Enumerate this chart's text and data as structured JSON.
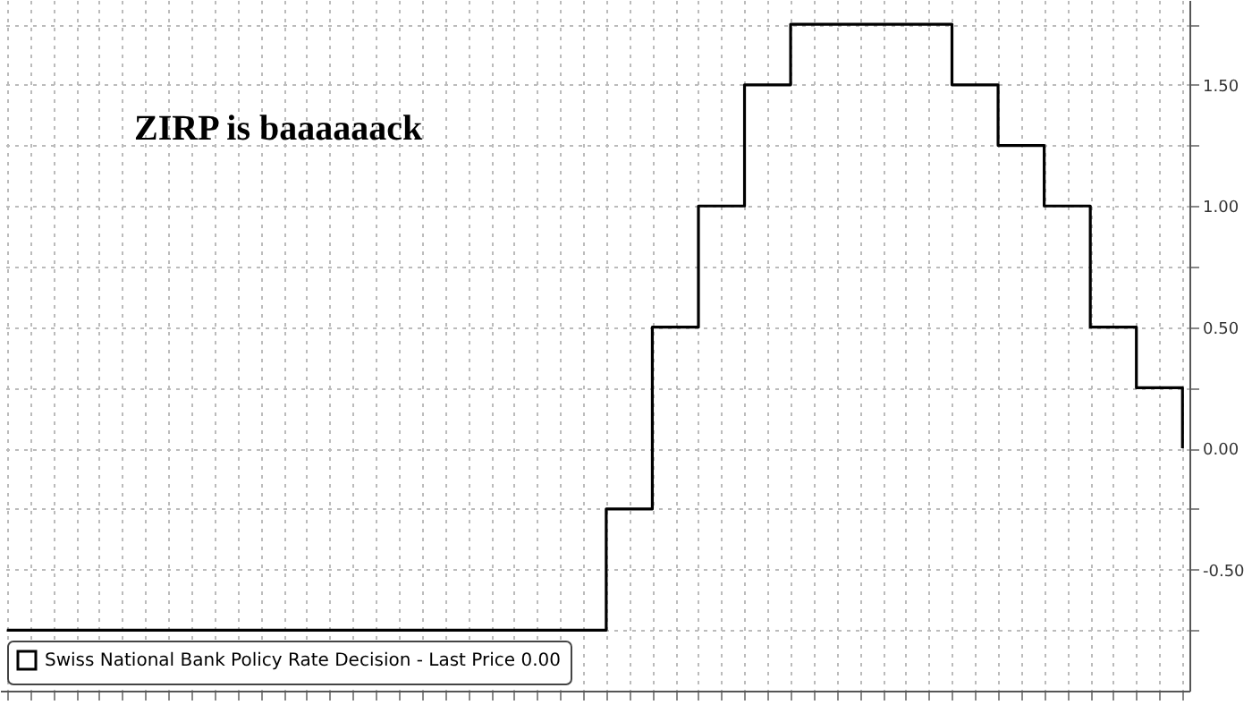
{
  "chart_data": {
    "type": "step",
    "title": "ZIRP is baaaaaack",
    "categories": [
      null,
      null,
      null,
      null,
      null,
      null,
      null,
      null,
      null,
      null,
      null,
      null,
      null,
      null,
      null,
      null,
      null,
      null,
      null,
      null,
      null,
      null,
      null,
      null,
      null,
      null,
      null,
      null,
      null,
      null,
      null,
      null,
      null,
      null,
      null,
      null,
      null,
      null,
      null,
      null,
      null,
      null,
      null,
      null,
      null,
      null,
      null,
      null,
      null,
      null,
      null,
      null
    ],
    "series": [
      {
        "name": "Swiss National Bank Policy Rate Decision - Last Price 0.00",
        "color": "#000000",
        "values": [
          -0.75,
          -0.75,
          -0.75,
          -0.75,
          -0.75,
          -0.75,
          -0.75,
          -0.75,
          -0.75,
          -0.75,
          -0.75,
          -0.75,
          -0.75,
          -0.75,
          -0.75,
          -0.75,
          -0.75,
          -0.75,
          -0.75,
          -0.75,
          -0.75,
          -0.75,
          -0.75,
          -0.75,
          -0.75,
          -0.75,
          -0.25,
          -0.25,
          0.5,
          0.5,
          1.0,
          1.0,
          1.5,
          1.5,
          1.75,
          1.75,
          1.75,
          1.75,
          1.75,
          1.75,
          1.75,
          1.5,
          1.5,
          1.25,
          1.25,
          1.0,
          1.0,
          0.5,
          0.5,
          0.25,
          0.25,
          0
        ]
      }
    ],
    "ylim": [
      -1,
      1.85
    ],
    "yticks": [
      {
        "value": -0.75,
        "label": null
      },
      {
        "value": -0.5,
        "label": "-0.50"
      },
      {
        "value": -0.25,
        "label": null
      },
      {
        "value": 0,
        "label": "0.00"
      },
      {
        "value": 0.25,
        "label": null
      },
      {
        "value": 0.5,
        "label": "0.50"
      },
      {
        "value": 0.75,
        "label": null
      },
      {
        "value": 1,
        "label": "1.00"
      },
      {
        "value": 1.25,
        "label": null
      },
      {
        "value": 1.5,
        "label": "1.50"
      },
      {
        "value": 1.75,
        "label": null
      }
    ],
    "grid": true,
    "legend": "bottom left",
    "line_style": "solid",
    "marker": "none",
    "tick_labels": "y"
  }
}
